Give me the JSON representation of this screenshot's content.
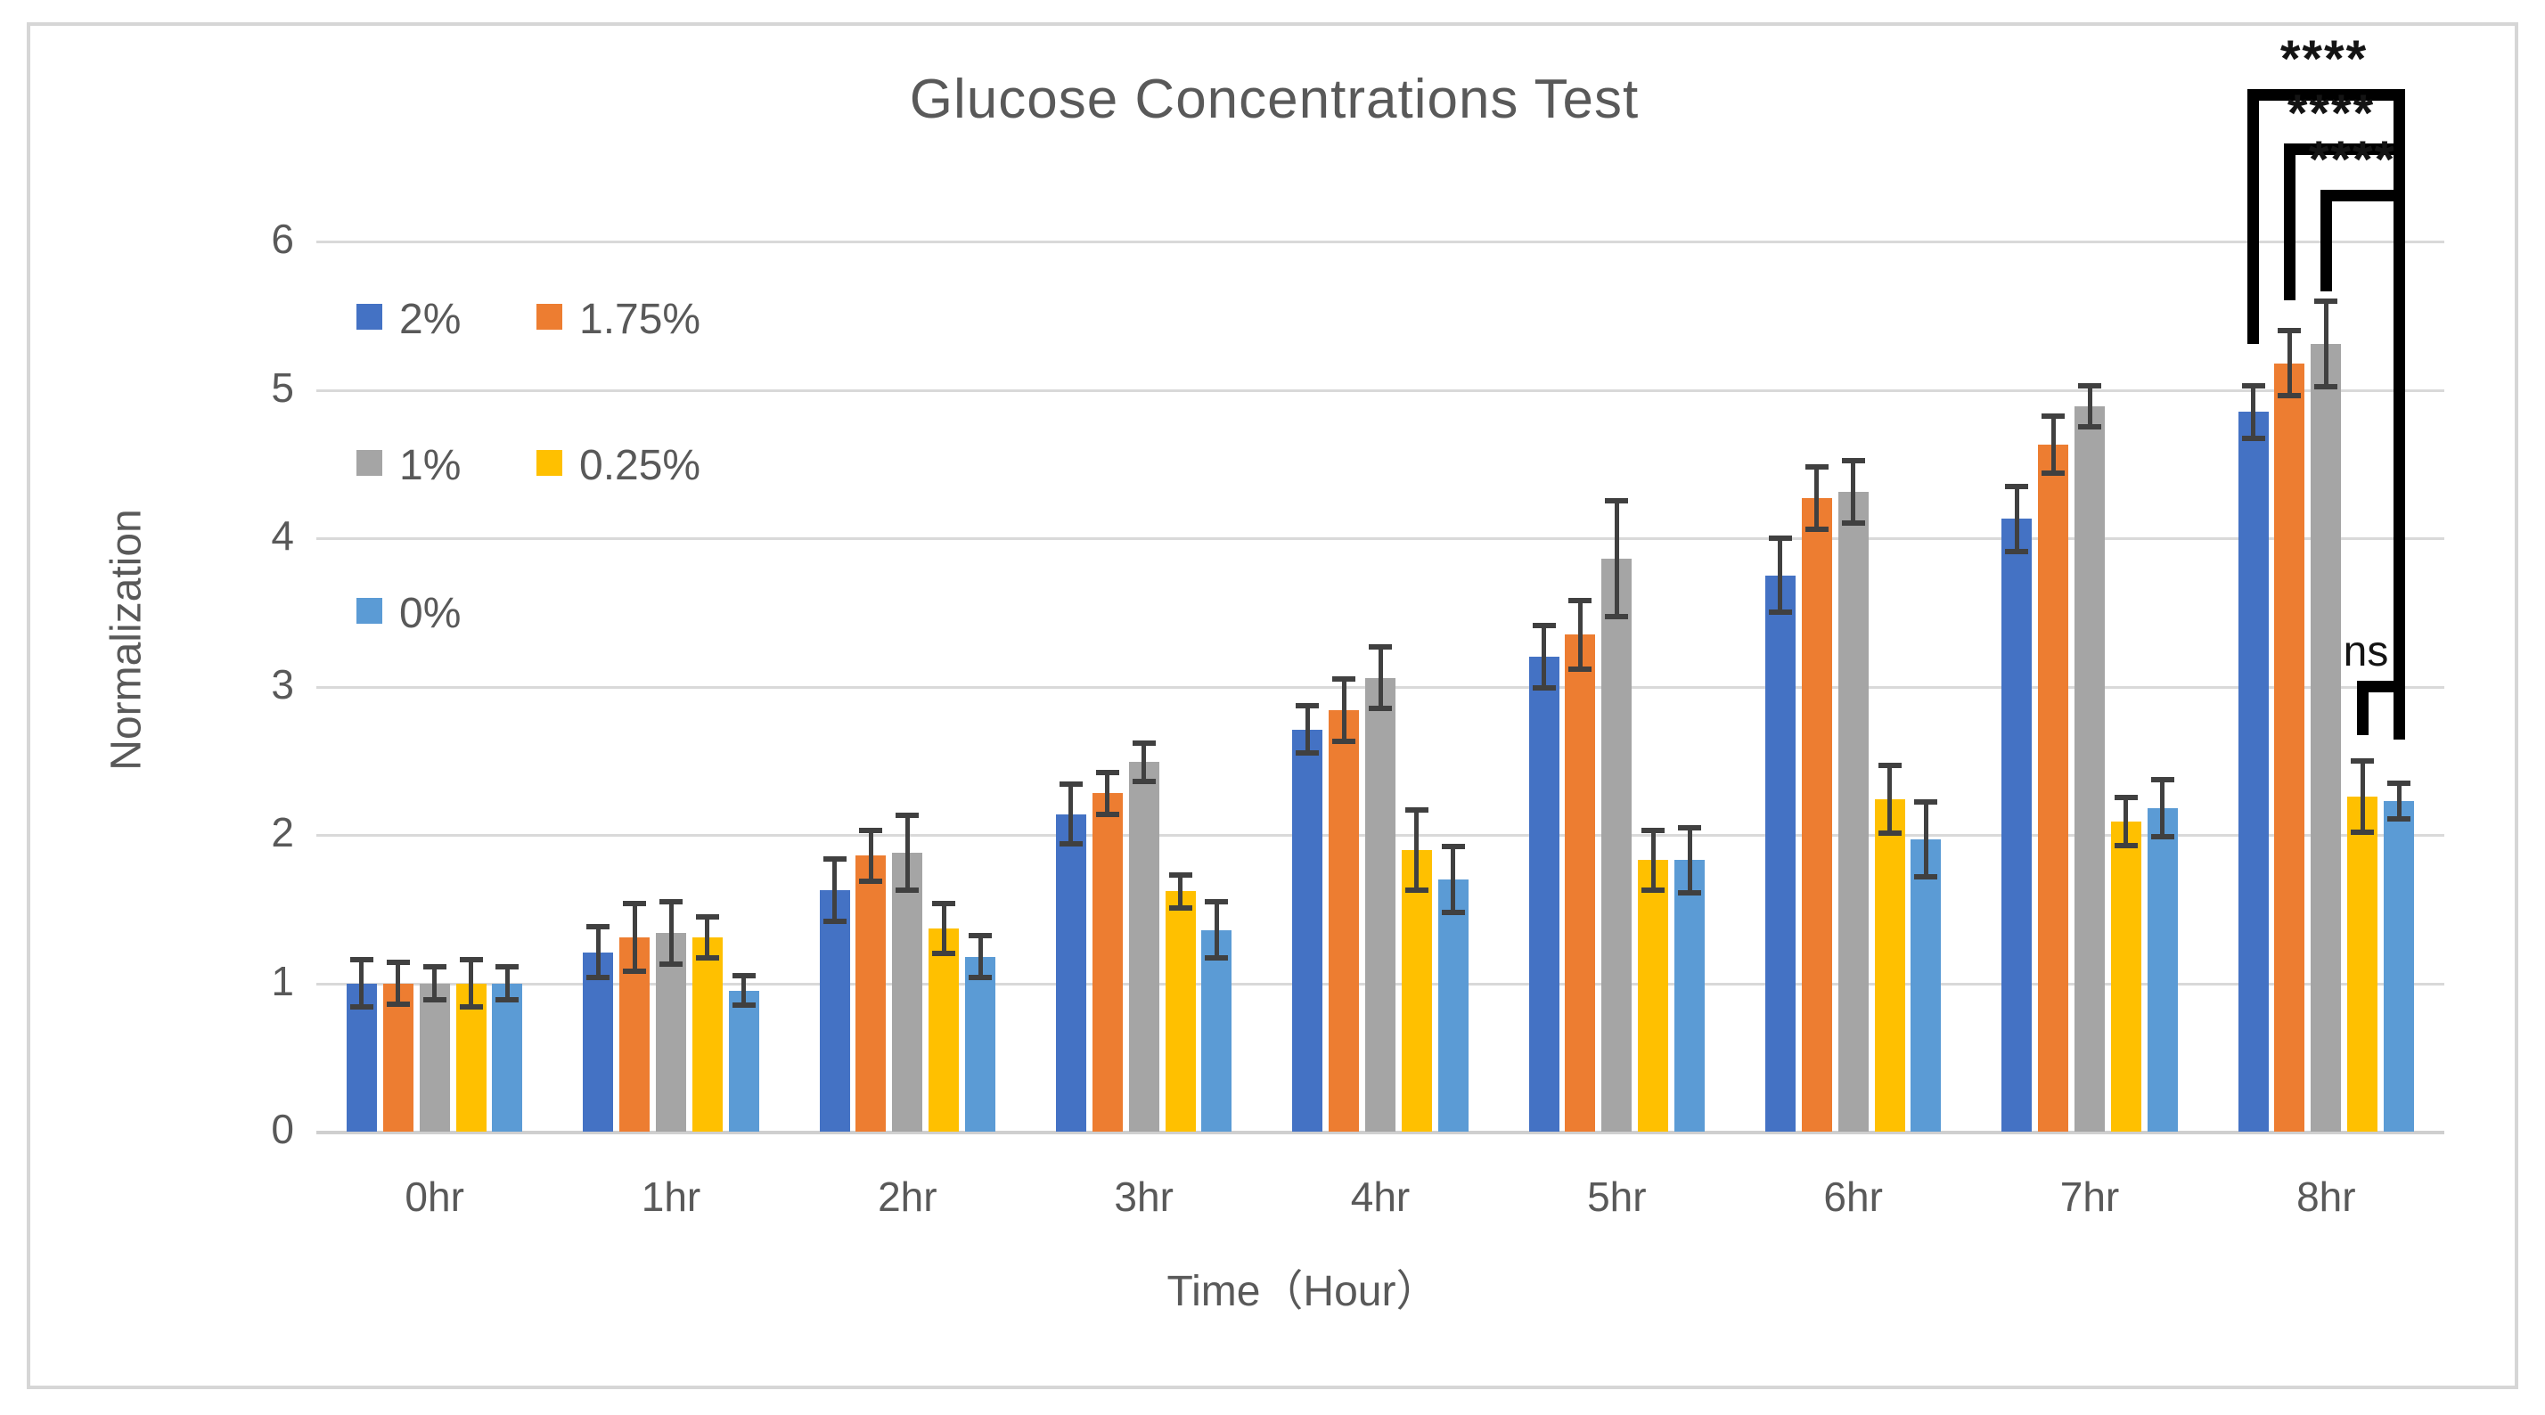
{
  "chart_data": {
    "type": "bar",
    "title": "Glucose Concentrations Test",
    "xlabel": "Time（Hour）",
    "ylabel": "Normalization",
    "categories": [
      "0hr",
      "1hr",
      "2hr",
      "3hr",
      "4hr",
      "5hr",
      "6hr",
      "7hr",
      "8hr"
    ],
    "ylim": [
      0,
      6
    ],
    "yticks": [
      0,
      1,
      2,
      3,
      4,
      5,
      6
    ],
    "grid": true,
    "legend_position": "inside-top-left",
    "error_bar_color": "#404040",
    "gridline_color": "#d9d9d9",
    "text_color": "#595959",
    "series": [
      {
        "name": "2%",
        "color": "#4472C4",
        "values": [
          1.0,
          1.21,
          1.63,
          2.14,
          2.71,
          3.2,
          3.75,
          4.13,
          4.85
        ],
        "errors": [
          0.16,
          0.17,
          0.21,
          0.2,
          0.16,
          0.21,
          0.25,
          0.22,
          0.18
        ]
      },
      {
        "name": "1.75%",
        "color": "#ED7D31",
        "values": [
          1.0,
          1.31,
          1.86,
          2.28,
          2.84,
          3.35,
          4.27,
          4.63,
          5.18
        ],
        "errors": [
          0.14,
          0.23,
          0.17,
          0.14,
          0.21,
          0.23,
          0.21,
          0.19,
          0.22
        ]
      },
      {
        "name": "1%",
        "color": "#A5A5A5",
        "values": [
          1.0,
          1.34,
          1.88,
          2.49,
          3.06,
          3.86,
          4.31,
          4.89,
          5.31
        ],
        "errors": [
          0.11,
          0.21,
          0.25,
          0.13,
          0.21,
          0.39,
          0.21,
          0.14,
          0.29
        ]
      },
      {
        "name": "0.25%",
        "color": "#FFC000",
        "values": [
          1.0,
          1.31,
          1.37,
          1.62,
          1.9,
          1.83,
          2.24,
          2.09,
          2.26
        ],
        "errors": [
          0.16,
          0.14,
          0.17,
          0.11,
          0.27,
          0.2,
          0.23,
          0.16,
          0.24
        ]
      },
      {
        "name": "0%",
        "color": "#5B9BD5",
        "values": [
          1.0,
          0.95,
          1.18,
          1.36,
          1.7,
          1.83,
          1.97,
          2.18,
          2.23
        ],
        "errors": [
          0.11,
          0.1,
          0.14,
          0.19,
          0.22,
          0.22,
          0.25,
          0.19,
          0.12
        ]
      }
    ],
    "annotations": {
      "significance": [
        {
          "label": "****",
          "between": [
            "2%",
            "0%"
          ],
          "at_category": "8hr"
        },
        {
          "label": "****",
          "between": [
            "1.75%",
            "0%"
          ],
          "at_category": "8hr"
        },
        {
          "label": "****",
          "between": [
            "1%",
            "0%"
          ],
          "at_category": "8hr"
        },
        {
          "label": "ns",
          "between": [
            "0.25%",
            "0%"
          ],
          "at_category": "8hr"
        }
      ]
    }
  }
}
